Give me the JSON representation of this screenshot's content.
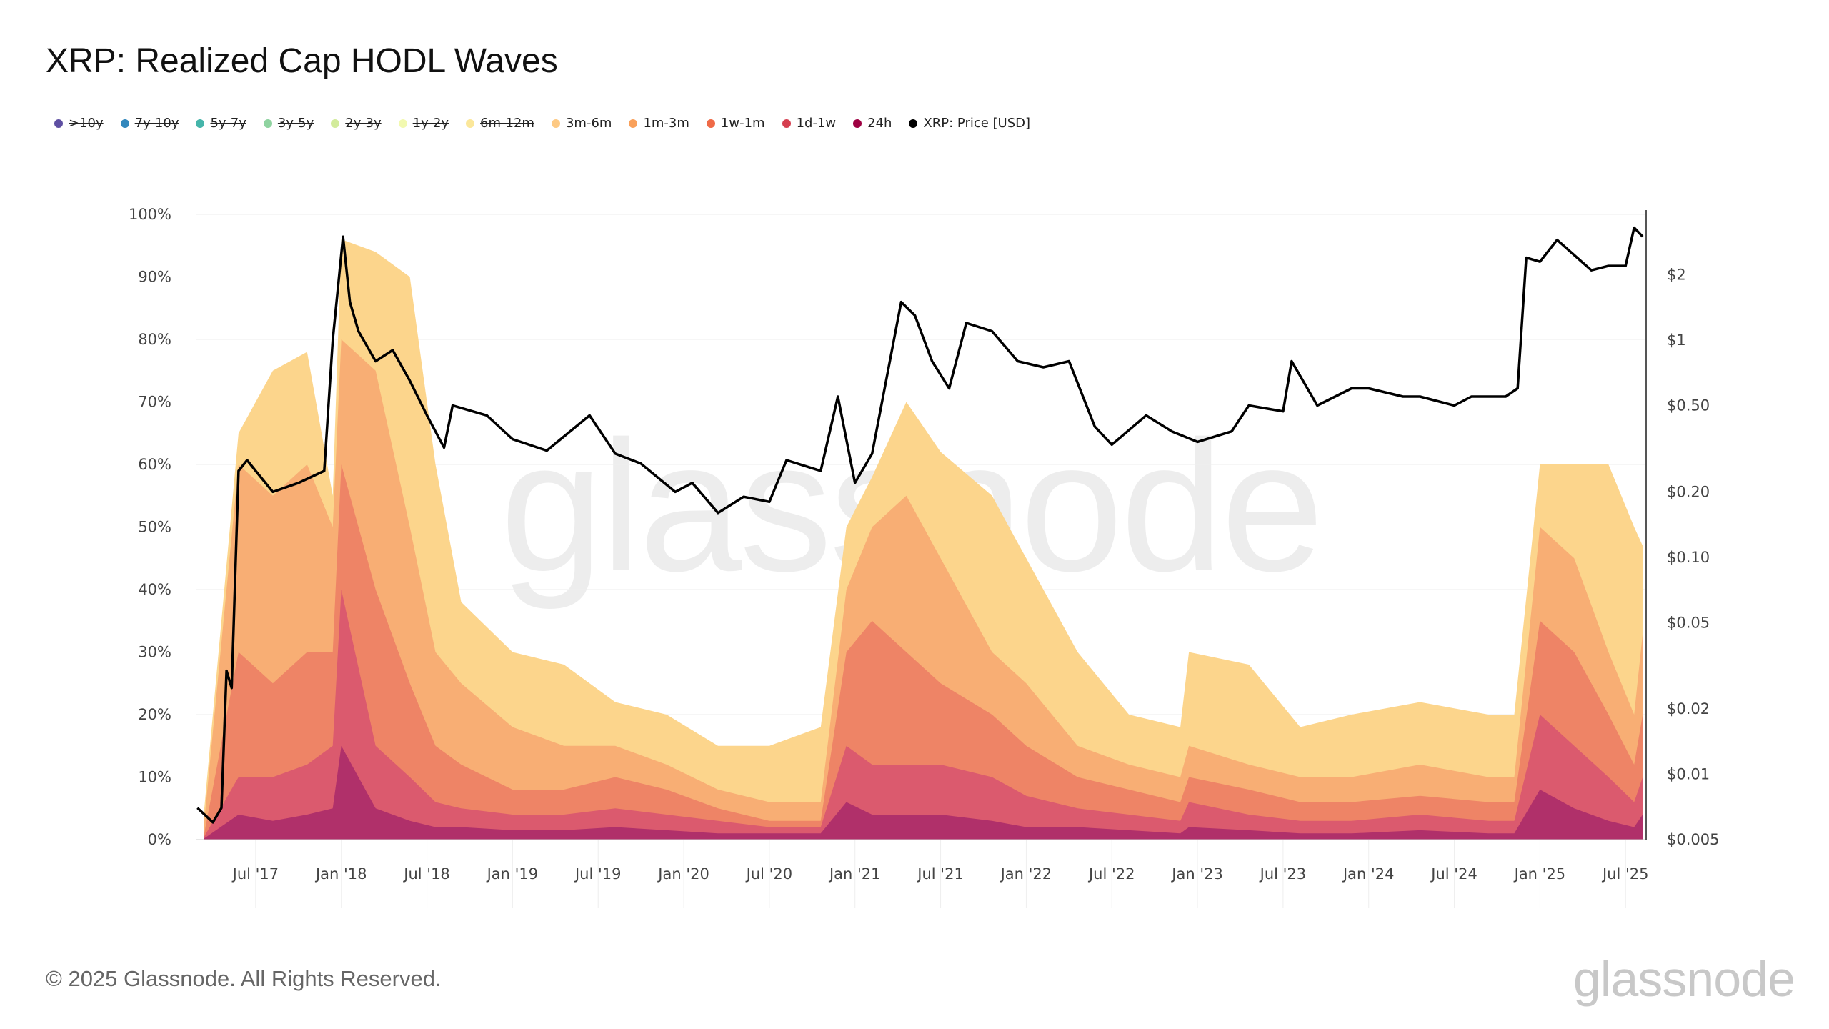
{
  "title": "XRP: Realized Cap HODL Waves",
  "legend": [
    {
      "label": ">10y",
      "color": "#5e4fa2",
      "enabled": false
    },
    {
      "label": "7y-10y",
      "color": "#3288bd",
      "enabled": false
    },
    {
      "label": "5y-7y",
      "color": "#45b5aa",
      "enabled": false
    },
    {
      "label": "3y-5y",
      "color": "#8fd3a0",
      "enabled": false
    },
    {
      "label": "2y-3y",
      "color": "#d2eb9b",
      "enabled": false
    },
    {
      "label": "1y-2y",
      "color": "#f2f9b0",
      "enabled": false
    },
    {
      "label": "6m-12m",
      "color": "#fbe79a",
      "enabled": false
    },
    {
      "label": "3m-6m",
      "color": "#fdc983",
      "enabled": true
    },
    {
      "label": "1m-3m",
      "color": "#f9a05a",
      "enabled": true
    },
    {
      "label": "1w-1m",
      "color": "#ef6a47",
      "enabled": true
    },
    {
      "label": "1d-1w",
      "color": "#d53e4f",
      "enabled": true
    },
    {
      "label": "24h",
      "color": "#9e0142",
      "enabled": true
    },
    {
      "label": "XRP: Price [USD]",
      "color": "#000000",
      "enabled": true
    }
  ],
  "footer": {
    "copyright": "© 2025 Glassnode. All Rights Reserved.",
    "logo": "glassnode",
    "watermark": "glassnode"
  },
  "chart_data": {
    "type": "area",
    "title": "XRP: Realized Cap HODL Waves",
    "x_unit": "decimal year",
    "xlim": [
      2017.15,
      2025.62
    ],
    "xticks": [
      {
        "x": 2017.5,
        "label": "Jul '17"
      },
      {
        "x": 2018.0,
        "label": "Jan '18"
      },
      {
        "x": 2018.5,
        "label": "Jul '18"
      },
      {
        "x": 2019.0,
        "label": "Jan '19"
      },
      {
        "x": 2019.5,
        "label": "Jul '19"
      },
      {
        "x": 2020.0,
        "label": "Jan '20"
      },
      {
        "x": 2020.5,
        "label": "Jul '20"
      },
      {
        "x": 2021.0,
        "label": "Jan '21"
      },
      {
        "x": 2021.5,
        "label": "Jul '21"
      },
      {
        "x": 2022.0,
        "label": "Jan '22"
      },
      {
        "x": 2022.5,
        "label": "Jul '22"
      },
      {
        "x": 2023.0,
        "label": "Jan '23"
      },
      {
        "x": 2023.5,
        "label": "Jul '23"
      },
      {
        "x": 2024.0,
        "label": "Jan '24"
      },
      {
        "x": 2024.5,
        "label": "Jul '24"
      },
      {
        "x": 2025.0,
        "label": "Jan '25"
      },
      {
        "x": 2025.5,
        "label": "Jul '25"
      }
    ],
    "y_left": {
      "ylim": [
        0,
        100
      ],
      "ticks": [
        "0%",
        "10%",
        "20%",
        "30%",
        "40%",
        "50%",
        "60%",
        "70%",
        "80%",
        "90%",
        "100%"
      ]
    },
    "y_right": {
      "scale": "log",
      "ylim": [
        0.005,
        3.8
      ],
      "ticks": [
        {
          "v": 0.005,
          "label": "$0.005"
        },
        {
          "v": 0.01,
          "label": "$0.01"
        },
        {
          "v": 0.02,
          "label": "$0.02"
        },
        {
          "v": 0.05,
          "label": "$0.05"
        },
        {
          "v": 0.1,
          "label": "$0.10"
        },
        {
          "v": 0.2,
          "label": "$0.20"
        },
        {
          "v": 0.5,
          "label": "$0.50"
        },
        {
          "v": 1,
          "label": "$1"
        },
        {
          "v": 2,
          "label": "$2"
        }
      ]
    },
    "wave_x": [
      2017.2,
      2017.4,
      2017.6,
      2017.8,
      2017.95,
      2018.0,
      2018.2,
      2018.4,
      2018.55,
      2018.7,
      2019.0,
      2019.3,
      2019.6,
      2019.9,
      2020.2,
      2020.5,
      2020.8,
      2020.95,
      2021.1,
      2021.3,
      2021.5,
      2021.8,
      2022.0,
      2022.3,
      2022.6,
      2022.9,
      2022.95,
      2023.3,
      2023.6,
      2023.9,
      2024.3,
      2024.7,
      2024.85,
      2025.0,
      2025.2,
      2025.4,
      2025.55,
      2025.6
    ],
    "series_cumulative_pct": [
      {
        "name": "3m-6m",
        "fill": "#fcd58c",
        "values": [
          5,
          65,
          75,
          78,
          55,
          96,
          94,
          90,
          60,
          38,
          30,
          28,
          22,
          20,
          15,
          15,
          18,
          50,
          58,
          70,
          62,
          55,
          45,
          30,
          20,
          18,
          30,
          28,
          18,
          20,
          22,
          20,
          20,
          60,
          60,
          60,
          50,
          47
        ]
      },
      {
        "name": "1m-3m",
        "fill": "#f8ae74",
        "values": [
          3,
          60,
          55,
          60,
          50,
          80,
          75,
          50,
          30,
          25,
          18,
          15,
          15,
          12,
          8,
          6,
          6,
          40,
          50,
          55,
          45,
          30,
          25,
          15,
          12,
          10,
          15,
          12,
          10,
          10,
          12,
          10,
          10,
          50,
          45,
          30,
          20,
          33
        ]
      },
      {
        "name": "1w-1m",
        "fill": "#ee8466",
        "values": [
          1,
          30,
          25,
          30,
          30,
          60,
          40,
          25,
          15,
          12,
          8,
          8,
          10,
          8,
          5,
          3,
          3,
          30,
          35,
          30,
          25,
          20,
          15,
          10,
          8,
          6,
          10,
          8,
          6,
          6,
          7,
          6,
          6,
          35,
          30,
          20,
          12,
          20
        ]
      },
      {
        "name": "1d-1w",
        "fill": "#db5a6e",
        "values": [
          0.5,
          10,
          10,
          12,
          15,
          40,
          15,
          10,
          6,
          5,
          4,
          4,
          5,
          4,
          3,
          2,
          2,
          15,
          12,
          12,
          12,
          10,
          7,
          5,
          4,
          3,
          6,
          4,
          3,
          3,
          4,
          3,
          3,
          20,
          15,
          10,
          6,
          10
        ]
      },
      {
        "name": "24h",
        "fill": "#b0306a",
        "values": [
          0.2,
          4,
          3,
          4,
          5,
          15,
          5,
          3,
          2,
          2,
          1.5,
          1.5,
          2,
          1.5,
          1,
          1,
          1,
          6,
          4,
          4,
          4,
          3,
          2,
          2,
          1.5,
          1,
          2,
          1.5,
          1,
          1,
          1.5,
          1,
          1,
          8,
          5,
          3,
          2,
          4
        ]
      }
    ],
    "price": {
      "name": "XRP: Price [USD]",
      "points": [
        [
          2017.16,
          0.007
        ],
        [
          2017.25,
          0.006
        ],
        [
          2017.3,
          0.007
        ],
        [
          2017.33,
          0.03
        ],
        [
          2017.36,
          0.025
        ],
        [
          2017.4,
          0.25
        ],
        [
          2017.45,
          0.28
        ],
        [
          2017.5,
          0.25
        ],
        [
          2017.6,
          0.2
        ],
        [
          2017.75,
          0.22
        ],
        [
          2017.9,
          0.25
        ],
        [
          2017.95,
          1.0
        ],
        [
          2018.01,
          3.0
        ],
        [
          2018.05,
          1.5
        ],
        [
          2018.1,
          1.1
        ],
        [
          2018.2,
          0.8
        ],
        [
          2018.3,
          0.9
        ],
        [
          2018.4,
          0.65
        ],
        [
          2018.5,
          0.45
        ],
        [
          2018.6,
          0.32
        ],
        [
          2018.65,
          0.5
        ],
        [
          2018.85,
          0.45
        ],
        [
          2019.0,
          0.35
        ],
        [
          2019.2,
          0.31
        ],
        [
          2019.45,
          0.45
        ],
        [
          2019.6,
          0.3
        ],
        [
          2019.75,
          0.27
        ],
        [
          2019.95,
          0.2
        ],
        [
          2020.05,
          0.22
        ],
        [
          2020.2,
          0.16
        ],
        [
          2020.35,
          0.19
        ],
        [
          2020.5,
          0.18
        ],
        [
          2020.6,
          0.28
        ],
        [
          2020.8,
          0.25
        ],
        [
          2020.9,
          0.55
        ],
        [
          2021.0,
          0.22
        ],
        [
          2021.1,
          0.3
        ],
        [
          2021.27,
          1.5
        ],
        [
          2021.35,
          1.3
        ],
        [
          2021.45,
          0.8
        ],
        [
          2021.55,
          0.6
        ],
        [
          2021.65,
          1.2
        ],
        [
          2021.8,
          1.1
        ],
        [
          2021.95,
          0.8
        ],
        [
          2022.1,
          0.75
        ],
        [
          2022.25,
          0.8
        ],
        [
          2022.4,
          0.4
        ],
        [
          2022.5,
          0.33
        ],
        [
          2022.7,
          0.45
        ],
        [
          2022.85,
          0.38
        ],
        [
          2023.0,
          0.34
        ],
        [
          2023.2,
          0.38
        ],
        [
          2023.3,
          0.5
        ],
        [
          2023.5,
          0.47
        ],
        [
          2023.55,
          0.8
        ],
        [
          2023.7,
          0.5
        ],
        [
          2023.9,
          0.6
        ],
        [
          2024.0,
          0.6
        ],
        [
          2024.2,
          0.55
        ],
        [
          2024.3,
          0.55
        ],
        [
          2024.5,
          0.5
        ],
        [
          2024.6,
          0.55
        ],
        [
          2024.8,
          0.55
        ],
        [
          2024.87,
          0.6
        ],
        [
          2024.92,
          2.4
        ],
        [
          2025.0,
          2.3
        ],
        [
          2025.1,
          2.9
        ],
        [
          2025.3,
          2.1
        ],
        [
          2025.4,
          2.2
        ],
        [
          2025.5,
          2.2
        ],
        [
          2025.55,
          3.3
        ],
        [
          2025.6,
          3.0
        ]
      ]
    }
  }
}
